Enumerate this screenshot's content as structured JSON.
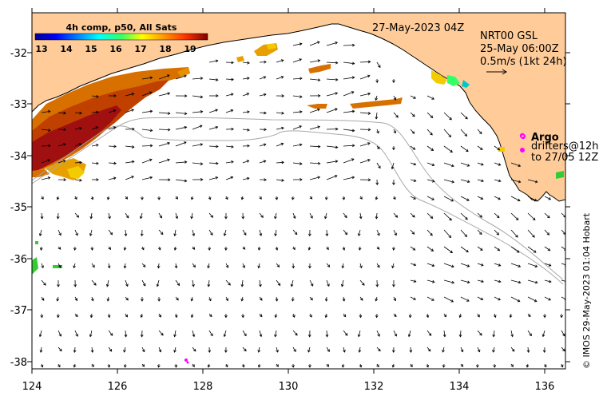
{
  "map": {
    "lon_range": [
      124,
      136.5
    ],
    "lat_range": [
      -38.1,
      -31.3
    ],
    "x_ticks": [
      "124",
      "126",
      "128",
      "130",
      "132",
      "134",
      "136"
    ],
    "y_ticks": [
      "-32",
      "-33",
      "-34",
      "-35",
      "-36",
      "-37",
      "-38"
    ],
    "land_color": "#ffcc99",
    "sea_color": "#ffffff"
  },
  "colorbar": {
    "title": "4h comp, p50, All Sats",
    "ticks": [
      "13",
      "14",
      "15",
      "16",
      "17",
      "18",
      "19"
    ],
    "range": [
      12.6,
      19.6
    ]
  },
  "header": {
    "date": "27-May-2023 04Z",
    "product": "NRT00 GSL",
    "valid": "25-May 06:00Z",
    "scale": "0.5m/s (1kt 24h)"
  },
  "argo": {
    "title": "Argo",
    "line1": "drifters@12h",
    "line2": "to 27/05 12Z",
    "color": "#ff00ff"
  },
  "credit": "© IMOS 29-May-2023 01:04 Hobart"
}
